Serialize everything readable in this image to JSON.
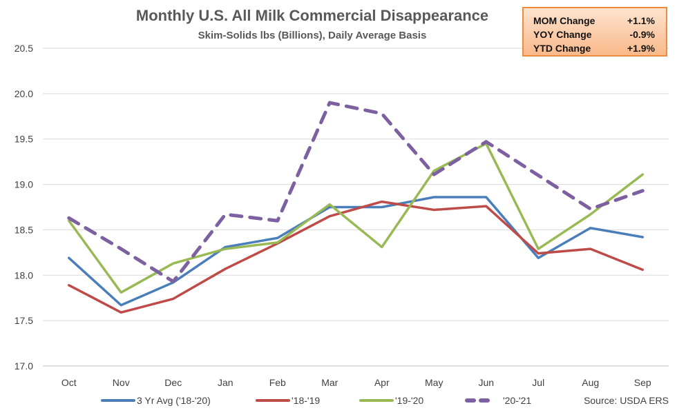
{
  "chart_data": {
    "type": "line",
    "title": "Monthly U.S. All Milk Commercial Disappearance",
    "subtitle": "Skim-Solids lbs (Billions), Daily Average Basis",
    "categories": [
      "Oct",
      "Nov",
      "Dec",
      "Jan",
      "Feb",
      "Mar",
      "Apr",
      "May",
      "Jun",
      "Jul",
      "Aug",
      "Sep"
    ],
    "ylim": [
      17.0,
      20.5
    ],
    "yticks": [
      "17.0",
      "17.5",
      "18.0",
      "18.5",
      "19.0",
      "19.5",
      "20.0",
      "20.5"
    ],
    "grid": true,
    "legend_position": "bottom",
    "series": [
      {
        "name": "3 Yr Avg ('18-'20)",
        "color": "#4a7ebb",
        "dashed": false,
        "values": [
          18.19,
          17.67,
          17.92,
          18.31,
          18.41,
          18.75,
          18.75,
          18.86,
          18.86,
          18.19,
          18.52,
          18.42
        ]
      },
      {
        "name": "'18-'19",
        "color": "#be4b48",
        "dashed": false,
        "values": [
          17.89,
          17.59,
          17.74,
          18.07,
          18.35,
          18.65,
          18.81,
          18.72,
          18.76,
          18.24,
          18.29,
          18.06
        ]
      },
      {
        "name": "'19-'20",
        "color": "#98b954",
        "dashed": false,
        "values": [
          18.6,
          17.81,
          18.13,
          18.29,
          18.36,
          18.78,
          18.31,
          19.15,
          19.45,
          18.29,
          18.67,
          19.11
        ]
      },
      {
        "name": "'20-'21",
        "color": "#7d60a0",
        "dashed": true,
        "values": [
          18.63,
          18.29,
          17.93,
          18.67,
          18.6,
          19.9,
          19.78,
          19.11,
          19.47,
          19.1,
          18.73,
          18.93
        ]
      }
    ],
    "source": "Source: USDA ERS"
  },
  "stats": [
    {
      "label": "MOM Change",
      "value": "+1.1%"
    },
    {
      "label": "YOY Change",
      "value": "-0.9%"
    },
    {
      "label": "YTD Change",
      "value": "+1.9%"
    }
  ]
}
